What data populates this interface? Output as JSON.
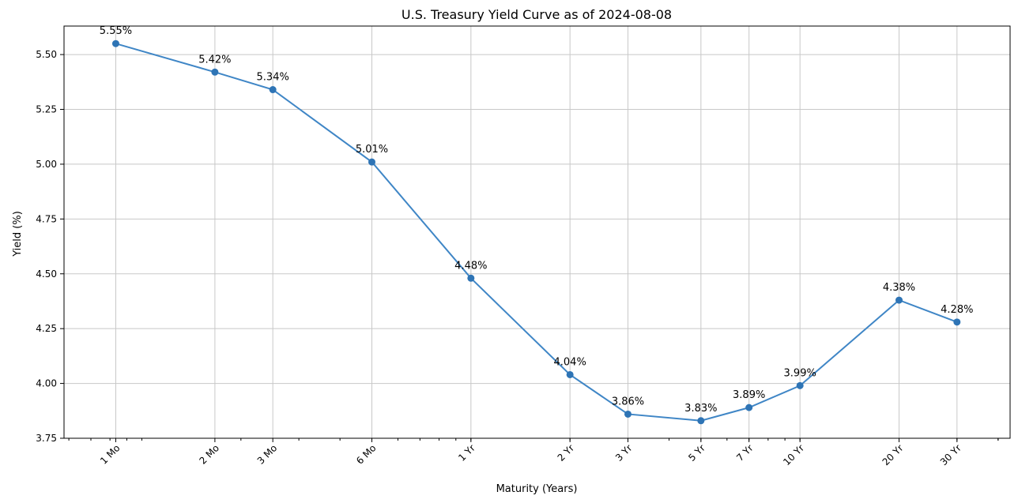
{
  "chart_data": {
    "type": "line",
    "title": "U.S. Treasury Yield Curve as of 2024-08-08",
    "xlabel": "Maturity (Years)",
    "ylabel": "Yield (%)",
    "x_scale": "log",
    "x_tick_labels": [
      "1 Mo",
      "2 Mo",
      "3 Mo",
      "6 Mo",
      "1 Yr",
      "2 Yr",
      "3 Yr",
      "5 Yr",
      "7 Yr",
      "10 Yr",
      "20 Yr",
      "30 Yr"
    ],
    "x_years": [
      0.0833,
      0.1667,
      0.25,
      0.5,
      1,
      2,
      3,
      5,
      7,
      10,
      20,
      30
    ],
    "values": [
      5.55,
      5.42,
      5.34,
      5.01,
      4.48,
      4.04,
      3.86,
      3.83,
      3.89,
      3.99,
      4.38,
      4.28
    ],
    "data_labels": [
      "5.55%",
      "5.42%",
      "5.34%",
      "5.01%",
      "4.48%",
      "4.04%",
      "3.86%",
      "3.83%",
      "3.89%",
      "3.99%",
      "4.38%",
      "4.28%"
    ],
    "ylim": [
      3.75,
      5.63
    ],
    "y_ticks": [
      3.75,
      4.0,
      4.25,
      4.5,
      4.75,
      5.0,
      5.25,
      5.5
    ],
    "y_tick_labels": [
      "3.75",
      "4.00",
      "4.25",
      "4.50",
      "4.75",
      "5.00",
      "5.25",
      "5.50"
    ],
    "grid": true,
    "legend": "none",
    "line_color": "#3f86c6",
    "marker_color": "#2e74b5"
  }
}
